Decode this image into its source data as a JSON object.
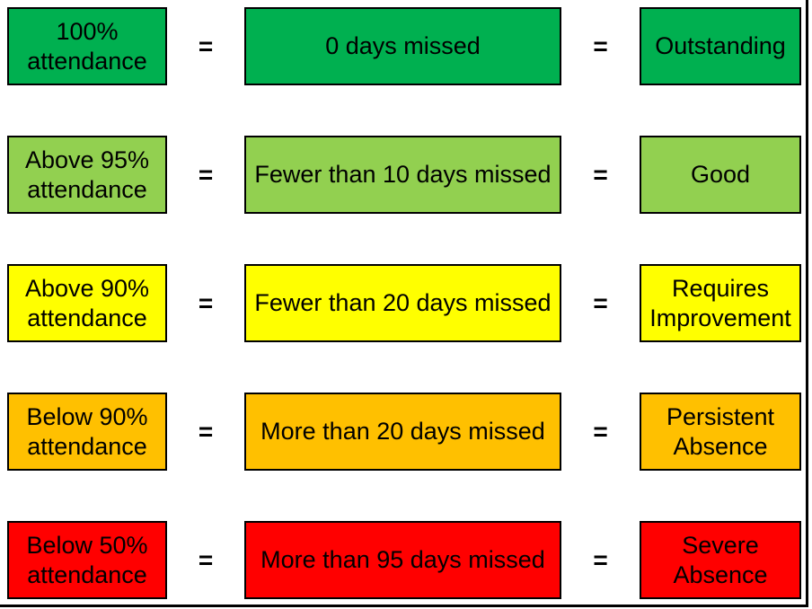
{
  "diagram": {
    "equals_symbol": "=",
    "colors": {
      "outstanding_green": "#00B050",
      "good_light_green": "#92D050",
      "requires_improvement_yellow": "#FFFF00",
      "persistent_absence_orange": "#FFC000",
      "severe_absence_red": "#FF0000",
      "border": "#000000",
      "text": "#000000",
      "background": "#FFFFFF"
    },
    "rows": [
      {
        "attendance": "100% attendance",
        "days_missed": "0 days missed",
        "rating": "Outstanding",
        "color": "#00B050"
      },
      {
        "attendance": "Above 95% attendance",
        "days_missed": "Fewer than 10 days missed",
        "rating": "Good",
        "color": "#92D050"
      },
      {
        "attendance": "Above 90% attendance",
        "days_missed": "Fewer than 20 days missed",
        "rating": "Requires Improvement",
        "color": "#FFFF00"
      },
      {
        "attendance": "Below 90% attendance",
        "days_missed": "More than 20 days missed",
        "rating": "Persistent Absence",
        "color": "#FFC000"
      },
      {
        "attendance": "Below 50% attendance",
        "days_missed": "More than 95 days missed",
        "rating": "Severe Absence",
        "color": "#FF0000"
      }
    ]
  }
}
